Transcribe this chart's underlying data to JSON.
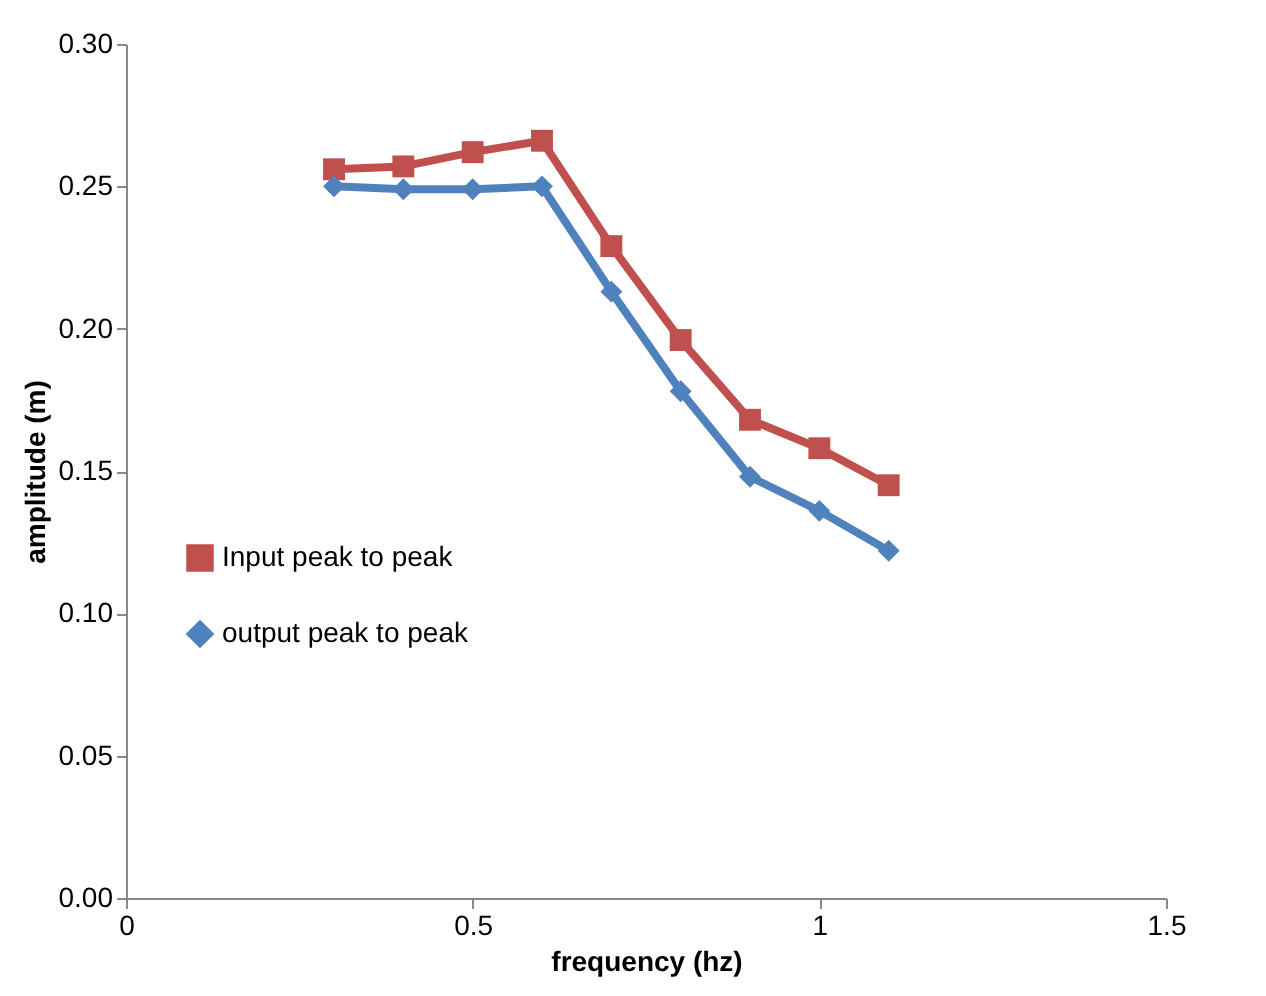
{
  "chart_data": {
    "type": "line",
    "xlabel": "frequency (hz)",
    "ylabel": "amplitude (m)",
    "x": [
      0.3,
      0.4,
      0.5,
      0.6,
      0.7,
      0.8,
      0.9,
      1.0,
      1.1
    ],
    "series": [
      {
        "name": "Input peak to peak",
        "color": "#c0504d",
        "marker": "square",
        "values": [
          0.256,
          0.257,
          0.262,
          0.266,
          0.229,
          0.196,
          0.168,
          0.158,
          0.145
        ]
      },
      {
        "name": "output peak to peak",
        "color": "#4f81bd",
        "marker": "diamond",
        "values": [
          0.25,
          0.249,
          0.249,
          0.25,
          0.213,
          0.178,
          0.148,
          0.136,
          0.122
        ]
      }
    ],
    "xlim": [
      0,
      1.5
    ],
    "xticks": [
      0,
      0.5,
      1,
      1.5
    ],
    "ylim": [
      0,
      0.3
    ],
    "yticks": [
      {
        "value": 0,
        "label": "0.00"
      },
      {
        "value": 0.05,
        "label": "0.05"
      },
      {
        "value": 0.1,
        "label": "0.10"
      },
      {
        "value": 0.15,
        "label": "0.15"
      },
      {
        "value": 0.2,
        "label": "0.20"
      },
      {
        "value": 0.25,
        "label": "0.25"
      },
      {
        "value": 0.3,
        "label": "0.30"
      }
    ],
    "grid": false,
    "legend": "left",
    "line_style": "solid"
  }
}
